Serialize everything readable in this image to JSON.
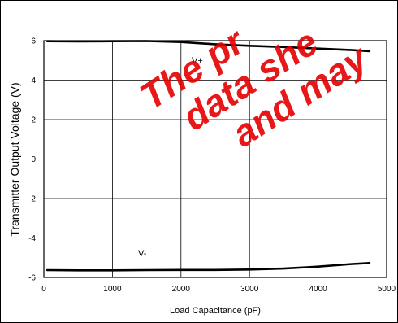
{
  "chart_data": {
    "type": "line",
    "title": "",
    "xlabel": "Load Capacitance (pF)",
    "ylabel": "Transmitter Output Voltage (V)",
    "xlim": [
      0,
      5000
    ],
    "ylim": [
      -6,
      6
    ],
    "x_ticks": [
      "0",
      "1000",
      "2000",
      "3000",
      "4000",
      "5000"
    ],
    "y_ticks": [
      "6",
      "4",
      "2",
      "0",
      "-2",
      "-4",
      "-6"
    ],
    "grid": true,
    "series": [
      {
        "name": "V+",
        "x": [
          50,
          500,
          1000,
          1500,
          2000,
          2500,
          3000,
          3500,
          4000,
          4500,
          4750
        ],
        "y": [
          5.97,
          5.96,
          5.97,
          5.98,
          5.93,
          5.82,
          5.74,
          5.68,
          5.6,
          5.52,
          5.47
        ]
      },
      {
        "name": "V-",
        "x": [
          50,
          500,
          1000,
          1500,
          2000,
          2500,
          3000,
          3500,
          4000,
          4500,
          4750
        ],
        "y": [
          -5.63,
          -5.64,
          -5.64,
          -5.63,
          -5.62,
          -5.62,
          -5.6,
          -5.55,
          -5.45,
          -5.32,
          -5.27
        ]
      }
    ],
    "series_labels": [
      "V+",
      "V-"
    ],
    "line_color": "#000000",
    "watermark": [
      "The pr",
      "data she",
      "and may"
    ],
    "watermark_color": "#e60000"
  }
}
